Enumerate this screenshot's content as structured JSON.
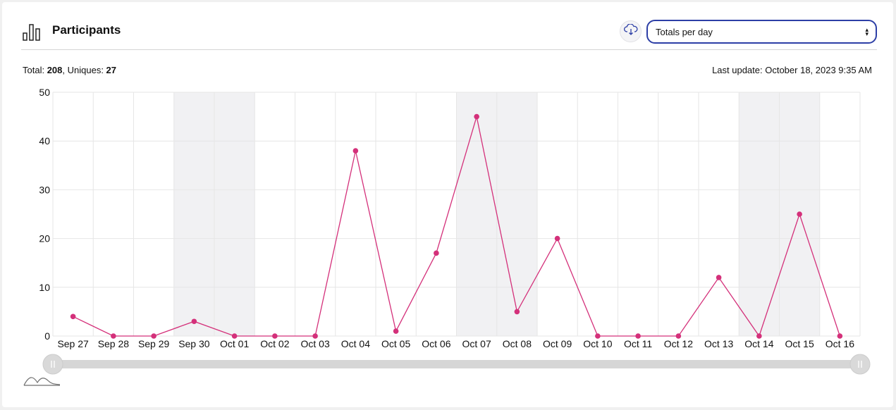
{
  "header": {
    "title": "Participants",
    "download_icon": "cloud-download-icon",
    "logo_icon": "bar-chart-icon"
  },
  "mode_select": {
    "selected": "Totals per day"
  },
  "summary": {
    "total_label": "Total: ",
    "total_value": "208",
    "separator": ", ",
    "uniques_label": "Uniques: ",
    "uniques_value": "27"
  },
  "last_update": "Last update: October 18, 2023 9:35 AM",
  "colors": {
    "line": "#d4307a",
    "weekend_band": "#f1f1f3",
    "grid": "#e6e6e6",
    "select_border": "#2d3fa6"
  },
  "chart_data": {
    "type": "line",
    "categories": [
      "Sep 27",
      "Sep 28",
      "Sep 29",
      "Sep 30",
      "Oct 01",
      "Oct 02",
      "Oct 03",
      "Oct 04",
      "Oct 05",
      "Oct 06",
      "Oct 07",
      "Oct 08",
      "Oct 09",
      "Oct 10",
      "Oct 11",
      "Oct 12",
      "Oct 13",
      "Oct 14",
      "Oct 15",
      "Oct 16"
    ],
    "series": [
      {
        "values": [
          4,
          0,
          0,
          3,
          0,
          0,
          0,
          38,
          1,
          17,
          45,
          5,
          20,
          0,
          0,
          0,
          12,
          0,
          25,
          0
        ]
      }
    ],
    "weekend_categories": [
      "Sep 30",
      "Oct 01",
      "Oct 07",
      "Oct 08",
      "Oct 14",
      "Oct 15"
    ],
    "ylim": [
      0,
      50
    ],
    "yticks": [
      0,
      10,
      20,
      30,
      40,
      50
    ],
    "grid": true,
    "legend": "none",
    "range_slider": true
  }
}
